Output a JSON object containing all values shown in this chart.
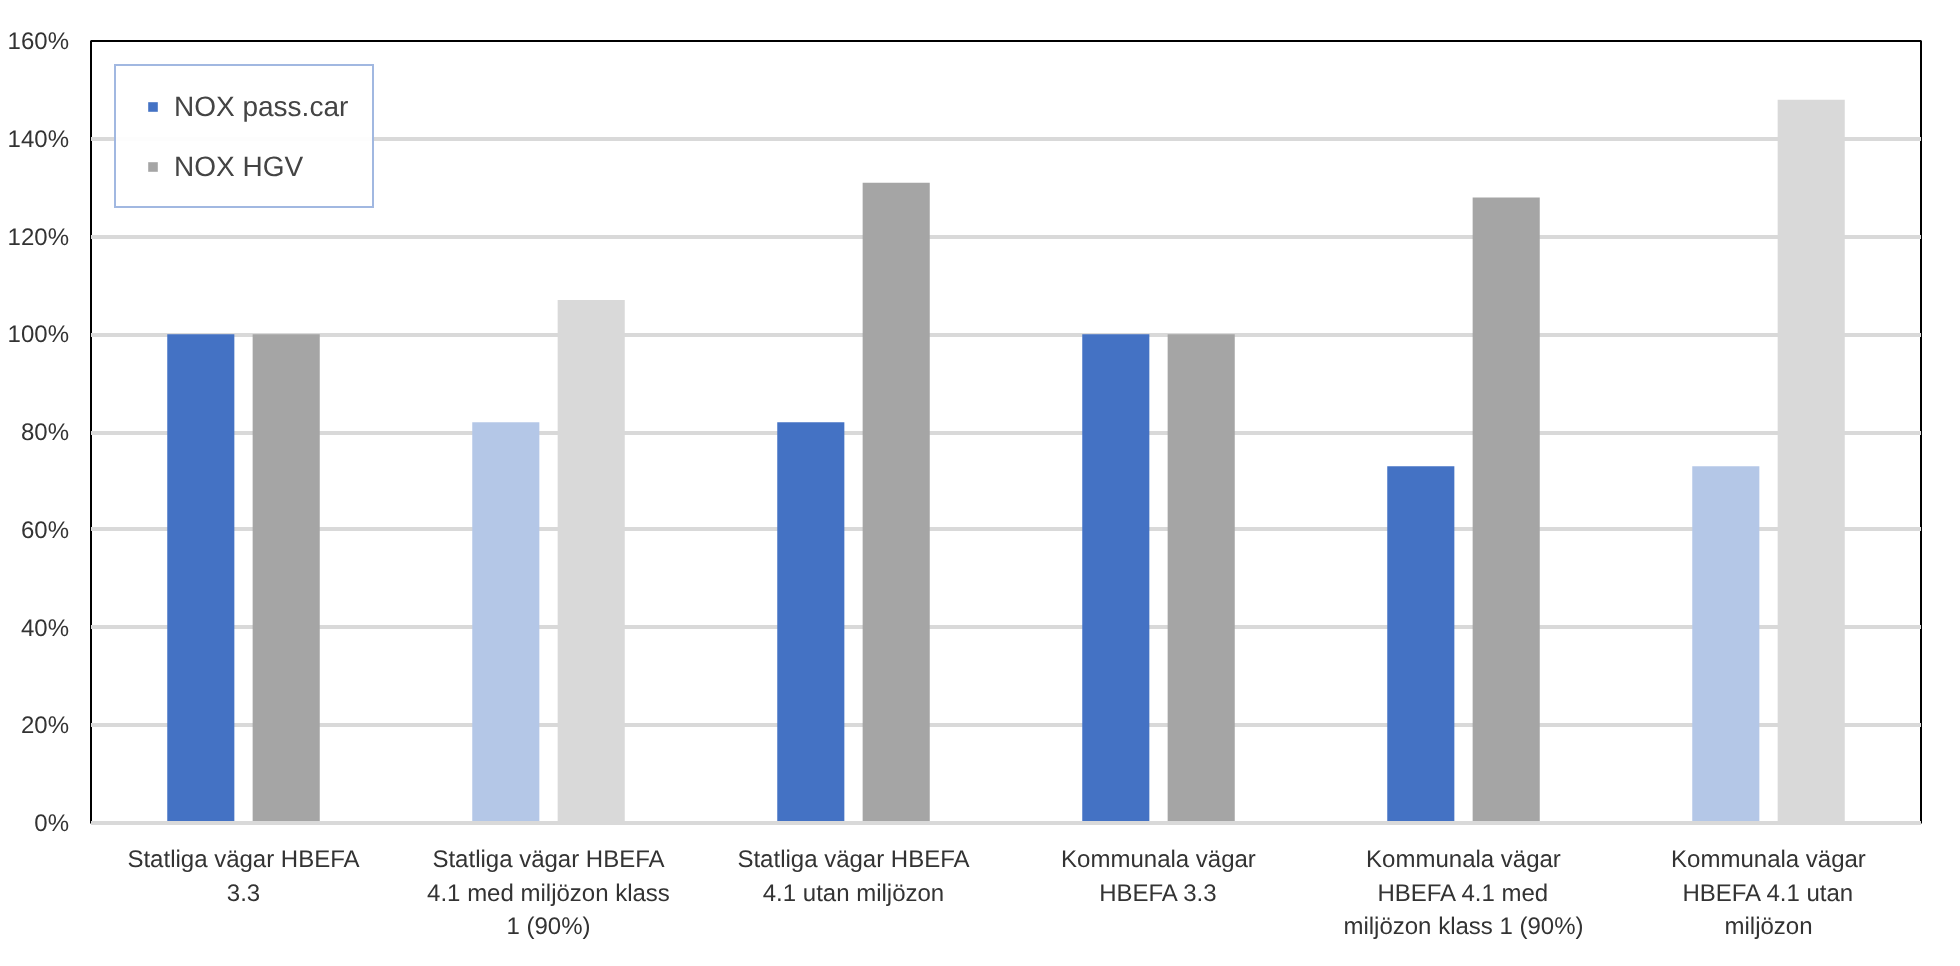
{
  "chart_data": {
    "type": "bar",
    "categories": [
      "Statliga vägar HBEFA\n3.3",
      "Statliga vägar HBEFA\n4.1 med miljözon klass\n1 (90%)",
      "Statliga vägar HBEFA\n4.1 utan miljözon",
      "Kommunala vägar\nHBEFA 3.3",
      "Kommunala vägar\nHBEFA 4.1 med\nmiljözon klass 1 (90%)",
      "Kommunala vägar\nHBEFA 4.1 utan\nmiljözon"
    ],
    "series": [
      {
        "name": "NOX pass.car",
        "color": "#4472c4",
        "colors": [
          "#4472c4",
          "#b4c7e7",
          "#4472c4",
          "#4472c4",
          "#4472c4",
          "#b4c7e7"
        ],
        "values": [
          100,
          82,
          82,
          100,
          73,
          73
        ]
      },
      {
        "name": "NOX HGV",
        "color": "#a5a5a5",
        "colors": [
          "#a5a5a5",
          "#d9d9d9",
          "#a5a5a5",
          "#a5a5a5",
          "#a5a5a5",
          "#d9d9d9"
        ],
        "values": [
          100,
          107,
          131,
          100,
          128,
          148
        ]
      }
    ],
    "ylim": [
      0,
      160
    ],
    "yticks": [
      {
        "value": 0,
        "label": "0%"
      },
      {
        "value": 20,
        "label": "20%"
      },
      {
        "value": 40,
        "label": "40%"
      },
      {
        "value": 60,
        "label": "60%"
      },
      {
        "value": 80,
        "label": "80%"
      },
      {
        "value": 100,
        "label": "100%"
      },
      {
        "value": 120,
        "label": "120%"
      },
      {
        "value": 140,
        "label": "140%"
      },
      {
        "value": 160,
        "label": "160%"
      }
    ],
    "grid": "y",
    "legend": "top left"
  }
}
